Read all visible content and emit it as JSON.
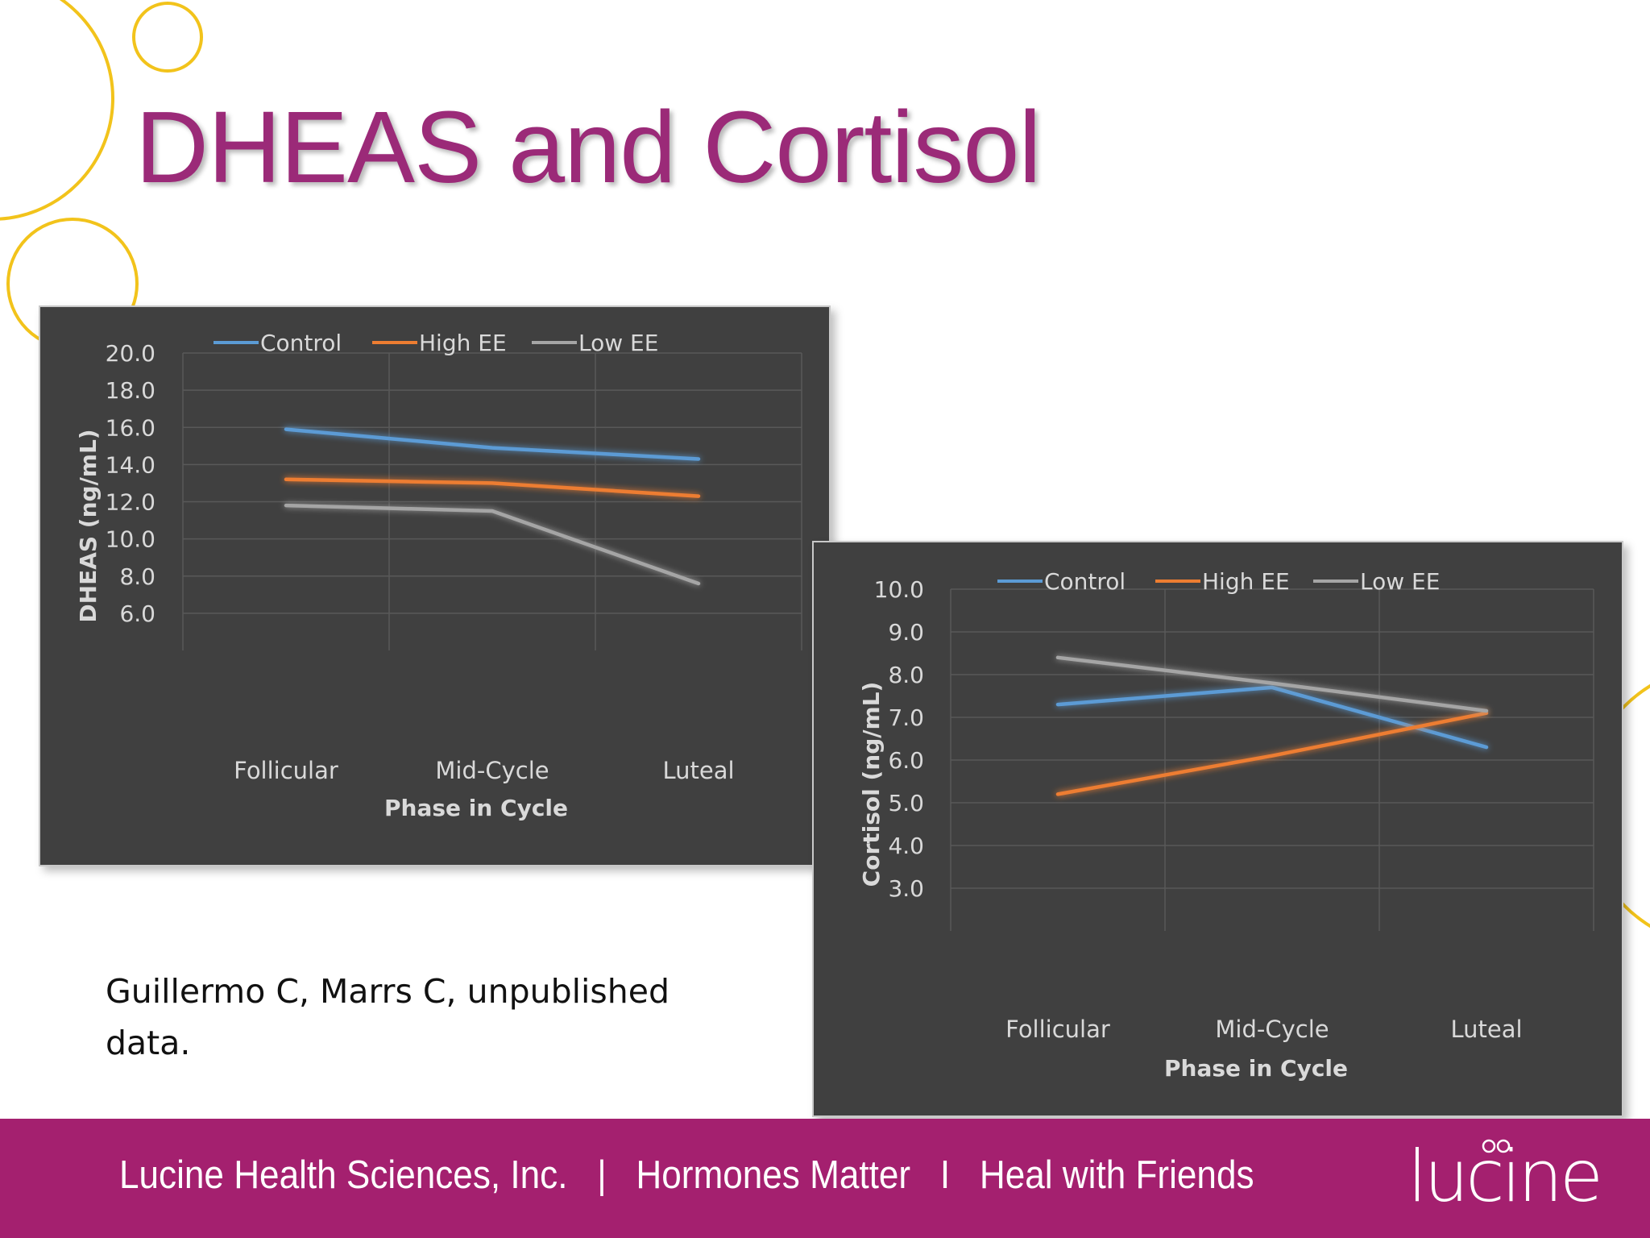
{
  "slide": {
    "title": "DHEAS and Cortisol",
    "citation": "Guillermo C, Marrs C, unpublished data.",
    "footer_text": "Lucine Health Sciences, Inc.   |   Hormones Matter   I   Heal with Friends",
    "logo_text": "lucine"
  },
  "colors": {
    "title": "#9b2a78",
    "footer": "#a4206f",
    "deco_circles": "#f2c31b",
    "chart_bg": "#404040"
  },
  "chart_data": [
    {
      "type": "line",
      "title": "",
      "xlabel": "Phase in Cycle",
      "ylabel": "DHEAS (ng/mL)",
      "categories": [
        "Follicular",
        "Mid-Cycle",
        "Luteal"
      ],
      "ylim": [
        4.0,
        20.0
      ],
      "yticks": [
        "20.0",
        "18.0",
        "16.0",
        "14.0",
        "12.0",
        "10.0",
        "8.0",
        "6.0"
      ],
      "grid": true,
      "legend_position": "top",
      "series": [
        {
          "name": "Control",
          "color": "#5b9bd5",
          "values": [
            15.9,
            14.9,
            14.3
          ]
        },
        {
          "name": "High EE",
          "color": "#ed7d31",
          "values": [
            13.2,
            13.0,
            12.3
          ]
        },
        {
          "name": "Low EE",
          "color": "#a5a5a5",
          "values": [
            11.8,
            11.5,
            7.6
          ]
        }
      ]
    },
    {
      "type": "line",
      "title": "",
      "xlabel": "Phase in Cycle",
      "ylabel": "Cortisol (ng/mL)",
      "categories": [
        "Follicular",
        "Mid-Cycle",
        "Luteal"
      ],
      "ylim": [
        2.0,
        10.0
      ],
      "yticks": [
        "10.0",
        "9.0",
        "8.0",
        "7.0",
        "6.0",
        "5.0",
        "4.0",
        "3.0"
      ],
      "grid": true,
      "legend_position": "top",
      "series": [
        {
          "name": "Control",
          "color": "#5b9bd5",
          "values": [
            7.3,
            7.7,
            6.3
          ]
        },
        {
          "name": "High EE",
          "color": "#ed7d31",
          "values": [
            5.2,
            6.1,
            7.1
          ]
        },
        {
          "name": "Low EE",
          "color": "#a5a5a5",
          "values": [
            8.4,
            7.8,
            7.15
          ]
        }
      ]
    }
  ]
}
